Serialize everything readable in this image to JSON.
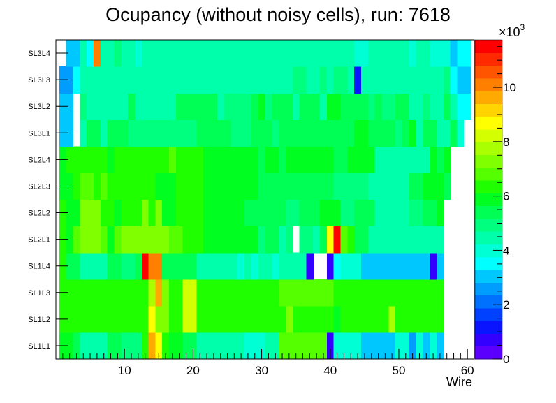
{
  "chart_data": {
    "type": "heatmap",
    "title": "Ocupancy (without noisy cells), run: 7618",
    "xlabel": "Wire",
    "ylabel": "",
    "xlim": [
      0,
      61
    ],
    "x_ticks": [
      10,
      20,
      30,
      40,
      50,
      60
    ],
    "y_categories": [
      "SL1L1",
      "SL1L2",
      "SL1L3",
      "SL1L4",
      "SL2L1",
      "SL2L2",
      "SL2L3",
      "SL2L4",
      "SL3L1",
      "SL3L2",
      "SL3L3",
      "SL3L4"
    ],
    "colorbar": {
      "exponent_label": "×10",
      "exponent": "3",
      "min": 0,
      "max": 11.75,
      "ticks": [
        "0",
        "2",
        "4",
        "6",
        "8",
        "10"
      ],
      "tick_values": [
        0,
        2,
        4,
        6,
        8,
        10
      ],
      "palette": [
        "#5b00ff",
        "#3300ff",
        "#0a14ff",
        "#0040ff",
        "#0070ff",
        "#009dff",
        "#00c8ff",
        "#00ffff",
        "#00ffd5",
        "#00ffaa",
        "#00ff7f",
        "#00ff54",
        "#00ff20",
        "#20ff00",
        "#55ff00",
        "#80ff00",
        "#aaff00",
        "#d4ff00",
        "#ffff00",
        "#ffd400",
        "#ffaa00",
        "#ff8000",
        "#ff5500",
        "#ff2a00",
        "#ff0000"
      ]
    },
    "rows": {
      "SL1L1": [
        [
          1,
          2,
          5.8
        ],
        [
          3,
          3,
          5.2
        ],
        [
          4,
          7,
          4.4
        ],
        [
          8,
          9,
          5.4
        ],
        [
          10,
          12,
          4.8
        ],
        [
          13,
          13,
          6.5
        ],
        [
          14,
          14,
          9.6
        ],
        [
          15,
          15,
          8.8
        ],
        [
          16,
          16,
          6.3
        ],
        [
          17,
          18,
          5.8
        ],
        [
          19,
          19,
          5.2
        ],
        [
          20,
          20,
          5.6
        ],
        [
          21,
          27,
          4.4
        ],
        [
          28,
          30,
          3.9
        ],
        [
          31,
          32,
          4.4
        ],
        [
          33,
          39,
          7.0
        ],
        [
          40,
          40,
          0.6
        ],
        [
          41,
          44,
          3.9
        ],
        [
          45,
          49,
          3.0
        ],
        [
          50,
          51,
          3.9
        ],
        [
          52,
          52,
          2.7
        ],
        [
          53,
          53,
          3.9
        ],
        [
          54,
          54,
          3.0
        ],
        [
          55,
          55,
          3.9
        ],
        [
          56,
          56,
          3.0
        ]
      ],
      "SL1L2": [
        [
          1,
          13,
          6.4
        ],
        [
          14,
          14,
          8.8
        ],
        [
          15,
          16,
          7.3
        ],
        [
          17,
          18,
          6.4
        ],
        [
          19,
          20,
          8.0
        ],
        [
          21,
          33,
          6.4
        ],
        [
          34,
          34,
          7.2
        ],
        [
          35,
          40,
          6.4
        ],
        [
          41,
          41,
          5.8
        ],
        [
          42,
          48,
          6.4
        ],
        [
          49,
          49,
          7.6
        ],
        [
          50,
          56,
          6.4
        ]
      ],
      "SL1L3": [
        [
          1,
          13,
          6.4
        ],
        [
          14,
          14,
          7.8
        ],
        [
          15,
          15,
          9.8
        ],
        [
          16,
          16,
          7.2
        ],
        [
          17,
          18,
          6.4
        ],
        [
          19,
          20,
          8.0
        ],
        [
          21,
          32,
          6.4
        ],
        [
          33,
          40,
          7.0
        ],
        [
          41,
          56,
          6.4
        ]
      ],
      "SL1L4": [
        [
          1,
          1,
          6.4
        ],
        [
          2,
          3,
          5.2
        ],
        [
          4,
          7,
          4.4
        ],
        [
          8,
          9,
          5.2
        ],
        [
          10,
          11,
          4.8
        ],
        [
          12,
          12,
          5.2
        ],
        [
          13,
          13,
          11.5
        ],
        [
          14,
          15,
          10.0
        ],
        [
          16,
          20,
          5.2
        ],
        [
          21,
          26,
          4.4
        ],
        [
          27,
          27,
          3.9
        ],
        [
          28,
          28,
          4.4
        ],
        [
          29,
          29,
          3.9
        ],
        [
          30,
          31,
          4.4
        ],
        [
          32,
          32,
          3.9
        ],
        [
          33,
          36,
          4.4
        ],
        [
          37,
          37,
          0.6
        ],
        [
          38,
          39,
          null
        ],
        [
          40,
          40,
          0.6
        ],
        [
          41,
          41,
          3.4
        ],
        [
          42,
          44,
          3.9
        ],
        [
          45,
          54,
          3.1
        ],
        [
          55,
          55,
          0.6
        ],
        [
          56,
          56,
          3.1
        ]
      ],
      "SL2L1": [
        [
          1,
          1,
          6.4
        ],
        [
          2,
          2,
          5.8
        ],
        [
          3,
          3,
          6.6
        ],
        [
          4,
          6,
          7.2
        ],
        [
          7,
          7,
          6.6
        ],
        [
          8,
          8,
          5.8
        ],
        [
          9,
          9,
          6.6
        ],
        [
          10,
          15,
          7.4
        ],
        [
          16,
          16,
          7.2
        ],
        [
          17,
          18,
          6.6
        ],
        [
          19,
          19,
          6.2
        ],
        [
          20,
          21,
          6.4
        ],
        [
          22,
          29,
          5.8
        ],
        [
          30,
          30,
          5.0
        ],
        [
          31,
          32,
          5.2
        ],
        [
          33,
          33,
          4.4
        ],
        [
          34,
          34,
          5.0
        ],
        [
          35,
          35,
          null
        ],
        [
          36,
          37,
          4.8
        ],
        [
          38,
          38,
          4.4
        ],
        [
          39,
          39,
          5.2
        ],
        [
          40,
          40,
          8.8
        ],
        [
          41,
          41,
          11.5
        ],
        [
          42,
          42,
          7.0
        ],
        [
          43,
          43,
          6.4
        ],
        [
          44,
          45,
          5.2
        ],
        [
          46,
          56,
          4.4
        ]
      ],
      "SL2L2": [
        [
          1,
          1,
          6.4
        ],
        [
          2,
          3,
          5.8
        ],
        [
          4,
          6,
          7.4
        ],
        [
          7,
          8,
          6.4
        ],
        [
          9,
          9,
          5.8
        ],
        [
          10,
          10,
          6.4
        ],
        [
          11,
          12,
          6.4
        ],
        [
          13,
          13,
          7.2
        ],
        [
          14,
          14,
          6.4
        ],
        [
          15,
          15,
          7.2
        ],
        [
          16,
          17,
          5.8
        ],
        [
          18,
          21,
          6.4
        ],
        [
          22,
          27,
          5.8
        ],
        [
          28,
          33,
          5.2
        ],
        [
          34,
          35,
          4.8
        ],
        [
          36,
          36,
          5.2
        ],
        [
          37,
          38,
          5.2
        ],
        [
          39,
          41,
          5.8
        ],
        [
          42,
          42,
          5.0
        ],
        [
          43,
          43,
          4.8
        ],
        [
          44,
          46,
          5.2
        ],
        [
          47,
          49,
          4.4
        ],
        [
          50,
          51,
          4.4
        ],
        [
          52,
          53,
          5.0
        ],
        [
          54,
          55,
          5.2
        ],
        [
          56,
          56,
          5.8
        ]
      ],
      "SL2L3": [
        [
          1,
          2,
          5.8
        ],
        [
          3,
          3,
          6.4
        ],
        [
          4,
          5,
          6.8
        ],
        [
          6,
          6,
          6.2
        ],
        [
          7,
          7,
          6.6
        ],
        [
          8,
          9,
          6.4
        ],
        [
          10,
          14,
          6.2
        ],
        [
          15,
          17,
          6.0
        ],
        [
          18,
          21,
          6.4
        ],
        [
          22,
          29,
          5.8
        ],
        [
          30,
          33,
          5.2
        ],
        [
          34,
          38,
          5.2
        ],
        [
          39,
          40,
          5.2
        ],
        [
          41,
          44,
          4.8
        ],
        [
          45,
          45,
          5.0
        ],
        [
          46,
          51,
          4.4
        ],
        [
          52,
          53,
          5.2
        ],
        [
          54,
          56,
          5.8
        ],
        [
          57,
          57,
          5.2
        ]
      ],
      "SL2L4": [
        [
          1,
          1,
          5.8
        ],
        [
          2,
          3,
          6.4
        ],
        [
          4,
          7,
          6.4
        ],
        [
          8,
          8,
          6.0
        ],
        [
          9,
          10,
          6.4
        ],
        [
          11,
          16,
          6.2
        ],
        [
          17,
          17,
          6.6
        ],
        [
          18,
          21,
          6.4
        ],
        [
          22,
          29,
          5.8
        ],
        [
          30,
          30,
          5.2
        ],
        [
          31,
          32,
          5.8
        ],
        [
          33,
          33,
          5.2
        ],
        [
          34,
          40,
          5.8
        ],
        [
          41,
          42,
          5.2
        ],
        [
          43,
          46,
          5.8
        ],
        [
          47,
          54,
          4.4
        ],
        [
          55,
          55,
          5.8
        ],
        [
          56,
          56,
          5.2
        ],
        [
          57,
          57,
          5.8
        ]
      ],
      "SL3L1": [
        [
          1,
          2,
          3.1
        ],
        [
          3,
          3,
          null
        ],
        [
          4,
          4,
          4.4
        ],
        [
          5,
          6,
          5.4
        ],
        [
          7,
          7,
          4.4
        ],
        [
          8,
          10,
          5.4
        ],
        [
          11,
          20,
          4.8
        ],
        [
          21,
          21,
          5.6
        ],
        [
          22,
          24,
          5.2
        ],
        [
          25,
          25,
          5.4
        ],
        [
          26,
          28,
          4.8
        ],
        [
          29,
          31,
          5.4
        ],
        [
          32,
          32,
          4.8
        ],
        [
          33,
          33,
          5.4
        ],
        [
          34,
          37,
          5.2
        ],
        [
          38,
          40,
          5.2
        ],
        [
          41,
          43,
          5.4
        ],
        [
          44,
          45,
          5.8
        ],
        [
          46,
          49,
          5.2
        ],
        [
          50,
          50,
          4.8
        ],
        [
          51,
          51,
          5.2
        ],
        [
          52,
          52,
          5.8
        ],
        [
          53,
          53,
          4.4
        ],
        [
          54,
          55,
          5.2
        ],
        [
          56,
          57,
          4.4
        ],
        [
          58,
          58,
          5.2
        ],
        [
          59,
          59,
          3.9
        ]
      ],
      "SL3L2": [
        [
          1,
          2,
          3.1
        ],
        [
          3,
          3,
          null
        ],
        [
          4,
          4,
          4.8
        ],
        [
          5,
          10,
          4.4
        ],
        [
          11,
          11,
          5.2
        ],
        [
          12,
          17,
          4.4
        ],
        [
          18,
          23,
          5.2
        ],
        [
          24,
          24,
          4.4
        ],
        [
          25,
          28,
          4.8
        ],
        [
          29,
          29,
          5.2
        ],
        [
          30,
          30,
          5.8
        ],
        [
          31,
          31,
          4.8
        ],
        [
          32,
          34,
          5.2
        ],
        [
          35,
          35,
          4.4
        ],
        [
          36,
          38,
          5.2
        ],
        [
          39,
          39,
          4.4
        ],
        [
          40,
          41,
          5.8
        ],
        [
          42,
          42,
          5.2
        ],
        [
          43,
          45,
          5.2
        ],
        [
          46,
          46,
          4.8
        ],
        [
          47,
          47,
          5.2
        ],
        [
          48,
          49,
          4.8
        ],
        [
          50,
          51,
          5.2
        ],
        [
          52,
          53,
          4.4
        ],
        [
          54,
          54,
          4.8
        ],
        [
          55,
          56,
          4.4
        ],
        [
          57,
          57,
          5.2
        ],
        [
          58,
          58,
          4.4
        ],
        [
          59,
          60,
          3.4
        ]
      ],
      "SL3L3": [
        [
          1,
          2,
          2.7
        ],
        [
          3,
          3,
          3.4
        ],
        [
          4,
          30,
          4.4
        ],
        [
          31,
          32,
          4.4
        ],
        [
          33,
          34,
          4.4
        ],
        [
          35,
          36,
          4.8
        ],
        [
          37,
          38,
          4.4
        ],
        [
          39,
          39,
          4.8
        ],
        [
          40,
          40,
          4.4
        ],
        [
          41,
          42,
          4.8
        ],
        [
          43,
          43,
          4.4
        ],
        [
          44,
          44,
          1.4
        ],
        [
          45,
          45,
          4.4
        ],
        [
          46,
          56,
          4.4
        ],
        [
          57,
          57,
          4.8
        ],
        [
          58,
          58,
          3.4
        ],
        [
          59,
          60,
          3.1
        ]
      ],
      "SL3L4": [
        [
          1,
          1,
          null
        ],
        [
          2,
          3,
          3.1
        ],
        [
          4,
          4,
          4.4
        ],
        [
          5,
          5,
          3.4
        ],
        [
          6,
          6,
          10.0
        ],
        [
          7,
          8,
          4.4
        ],
        [
          9,
          9,
          4.8
        ],
        [
          10,
          11,
          4.4
        ],
        [
          12,
          12,
          3.9
        ],
        [
          13,
          43,
          4.4
        ],
        [
          44,
          45,
          3.9
        ],
        [
          46,
          51,
          4.4
        ],
        [
          52,
          52,
          3.9
        ],
        [
          53,
          54,
          4.4
        ],
        [
          55,
          55,
          3.9
        ],
        [
          56,
          57,
          3.9
        ],
        [
          58,
          58,
          3.1
        ],
        [
          59,
          60,
          3.4
        ]
      ]
    }
  }
}
